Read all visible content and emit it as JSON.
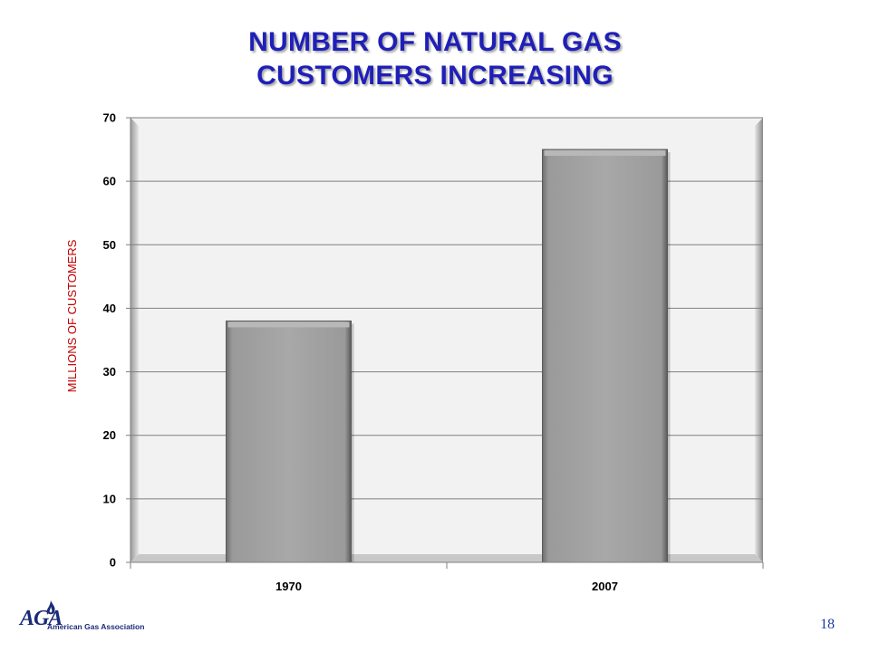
{
  "slide": {
    "title_line1": "NUMBER OF NATURAL GAS",
    "title_line2": "CUSTOMERS INCREASING",
    "page_number": "18"
  },
  "logo": {
    "mark": "AGA",
    "text": "American Gas Association"
  },
  "colors": {
    "title": "#1f1fb8",
    "y_axis_title": "#c00000",
    "bar": "#a6a6a6",
    "plot_background": "#f2f2f2"
  },
  "chart_data": {
    "type": "bar",
    "title": "NUMBER OF NATURAL GAS CUSTOMERS INCREASING",
    "xlabel": "",
    "ylabel": "MILLIONS OF CUSTOMERS",
    "categories": [
      "1970",
      "2007"
    ],
    "values": [
      38,
      65
    ],
    "ylim": [
      0,
      70
    ],
    "yticks": [
      0,
      10,
      20,
      30,
      40,
      50,
      60,
      70
    ],
    "grid": true,
    "legend": "none"
  }
}
